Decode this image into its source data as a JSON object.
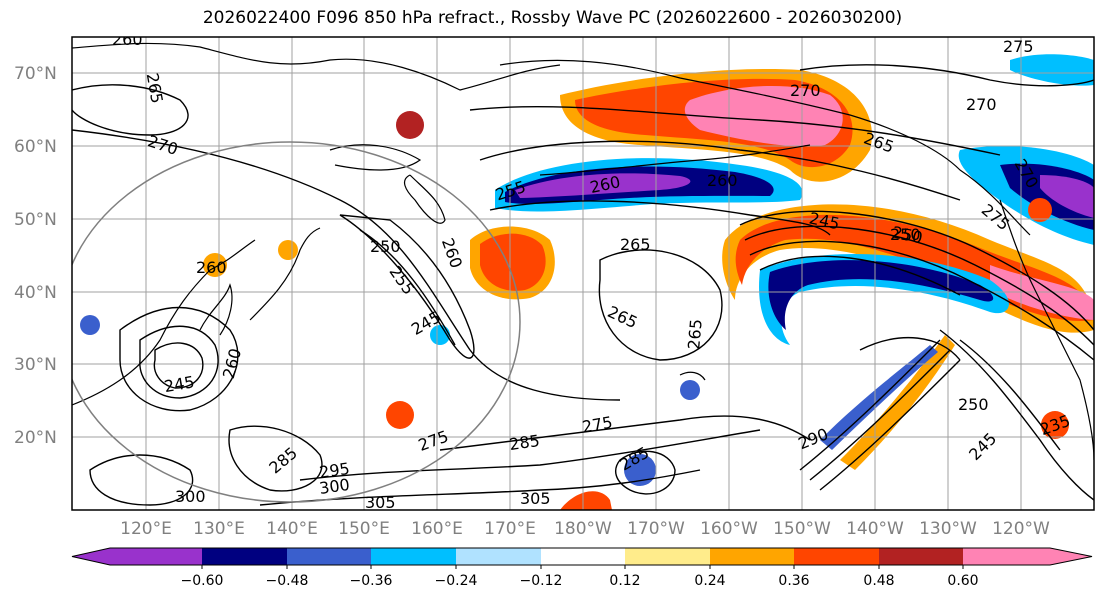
{
  "title": "2026022400 F096 850 hPa refract., Rossby Wave PC (2026022600 - 2026030200)",
  "latitude_labels": [
    "70°N",
    "60°N",
    "50°N",
    "40°N",
    "30°N",
    "20°N"
  ],
  "longitude_labels": [
    "120°E",
    "130°E",
    "140°E",
    "150°E",
    "160°E",
    "170°E",
    "180°W",
    "170°W",
    "160°W",
    "150°W",
    "140°W",
    "130°W",
    "120°W"
  ],
  "colorbar": {
    "colors": [
      "#9932cc",
      "#000080",
      "#3a5fcd",
      "#00bfff",
      "#b0e2ff",
      "#ffffff",
      "#ffec8b",
      "#ffa500",
      "#ff4500",
      "#b22222",
      "#ff83b4"
    ],
    "tick_labels": [
      "−0.60",
      "−0.48",
      "−0.36",
      "−0.24",
      "−0.12",
      "0.12",
      "0.24",
      "0.36",
      "0.48",
      "0.60"
    ]
  },
  "contour_labels": [
    "260",
    "265",
    "270",
    "275",
    "255",
    "260",
    "270",
    "270",
    "265",
    "275",
    "270",
    "260",
    "250",
    "260",
    "265",
    "255",
    "245",
    "250",
    "260",
    "245",
    "265",
    "265",
    "285",
    "245",
    "260",
    "275",
    "285",
    "285",
    "275",
    "295",
    "300",
    "305",
    "305",
    "300",
    "290",
    "250",
    "245",
    "250",
    "235"
  ],
  "colors": {
    "contour": "#000000",
    "coastline": "#000000",
    "grid": "#a0a0a0",
    "axis_label": "#808080",
    "circle": "#808080"
  }
}
